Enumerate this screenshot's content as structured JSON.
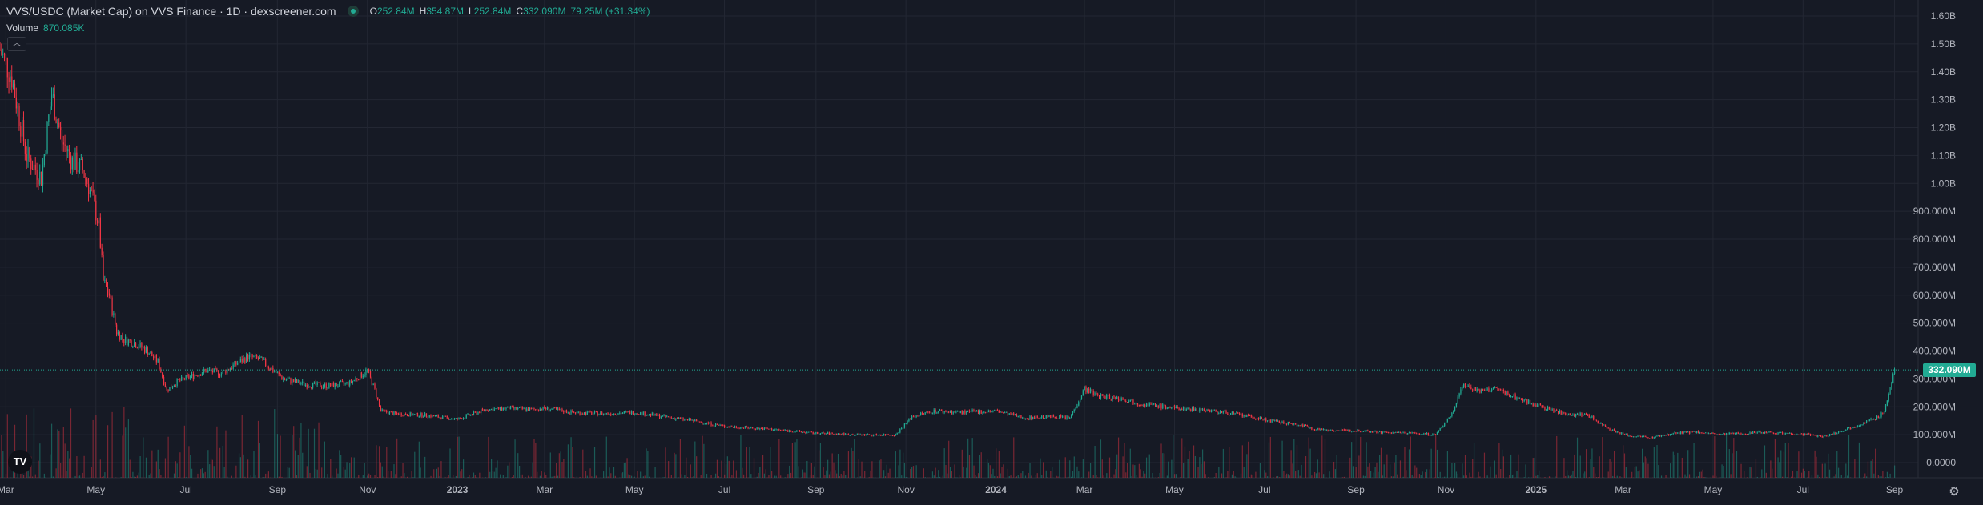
{
  "header": {
    "title": "VVS/USDC (Market Cap) on VVS Finance · 1D · dexscreener.com",
    "ohlc": [
      {
        "k": "O",
        "v": "252.84M"
      },
      {
        "k": "H",
        "v": "354.87M"
      },
      {
        "k": "L",
        "v": "252.84M"
      },
      {
        "k": "C",
        "v": "332.090M"
      }
    ],
    "change": "79.25M (+31.34%)"
  },
  "volume_legend": {
    "label": "Volume",
    "value": "870.085K"
  },
  "collapse_icon": "chevron-up-icon",
  "logo_text": "TV",
  "settings_icon": "gear-icon",
  "colors": {
    "background": "#161a25",
    "grid": "#232733",
    "up": "#22ab94",
    "down": "#f23645",
    "text": "#d1d4dc"
  },
  "chart_data": {
    "type": "candlestick",
    "title": "VVS/USDC (Market Cap) on VVS Finance · 1D · dexscreener.com",
    "ylim": [
      0,
      1600000000
    ],
    "y_ticks": [
      {
        "value": 0,
        "label": "0.0000"
      },
      {
        "value": 100000000,
        "label": "100.000M"
      },
      {
        "value": 200000000,
        "label": "200.000M"
      },
      {
        "value": 300000000,
        "label": "300.000M"
      },
      {
        "value": 400000000,
        "label": "400.000M"
      },
      {
        "value": 500000000,
        "label": "500.000M"
      },
      {
        "value": 600000000,
        "label": "600.000M"
      },
      {
        "value": 700000000,
        "label": "700.000M"
      },
      {
        "value": 800000000,
        "label": "800.000M"
      },
      {
        "value": 900000000,
        "label": "900.000M"
      },
      {
        "value": 1000000000,
        "label": "1.00B"
      },
      {
        "value": 1100000000,
        "label": "1.10B"
      },
      {
        "value": 1200000000,
        "label": "1.20B"
      },
      {
        "value": 1300000000,
        "label": "1.30B"
      },
      {
        "value": 1400000000,
        "label": "1.40B"
      },
      {
        "value": 1500000000,
        "label": "1.50B"
      },
      {
        "value": 1600000000,
        "label": "1.60B"
      }
    ],
    "x_ticks": [
      {
        "date": "2022-03-01",
        "label": "Mar",
        "bold": false
      },
      {
        "date": "2022-05-01",
        "label": "May",
        "bold": false
      },
      {
        "date": "2022-07-01",
        "label": "Jul",
        "bold": false
      },
      {
        "date": "2022-09-01",
        "label": "Sep",
        "bold": false
      },
      {
        "date": "2022-11-01",
        "label": "Nov",
        "bold": false
      },
      {
        "date": "2023-01-01",
        "label": "2023",
        "bold": true
      },
      {
        "date": "2023-03-01",
        "label": "Mar",
        "bold": false
      },
      {
        "date": "2023-05-01",
        "label": "May",
        "bold": false
      },
      {
        "date": "2023-07-01",
        "label": "Jul",
        "bold": false
      },
      {
        "date": "2023-09-01",
        "label": "Sep",
        "bold": false
      },
      {
        "date": "2023-11-01",
        "label": "Nov",
        "bold": false
      },
      {
        "date": "2024-01-01",
        "label": "2024",
        "bold": true
      },
      {
        "date": "2024-03-01",
        "label": "Mar",
        "bold": false
      },
      {
        "date": "2024-05-01",
        "label": "May",
        "bold": false
      },
      {
        "date": "2024-07-01",
        "label": "Jul",
        "bold": false
      },
      {
        "date": "2024-09-01",
        "label": "Sep",
        "bold": false
      },
      {
        "date": "2024-11-01",
        "label": "Nov",
        "bold": false
      },
      {
        "date": "2025-01-01",
        "label": "2025",
        "bold": true
      },
      {
        "date": "2025-03-01",
        "label": "Mar",
        "bold": false
      },
      {
        "date": "2025-05-01",
        "label": "May",
        "bold": false
      },
      {
        "date": "2025-07-01",
        "label": "Jul",
        "bold": false
      },
      {
        "date": "2025-09-01",
        "label": "Sep",
        "bold": false
      }
    ],
    "x_range": [
      "2022-02-25",
      "2025-09-17"
    ],
    "last_price": {
      "value": 332090000,
      "label": "332.090M"
    },
    "series": [
      {
        "x": [
          "2022-02-25",
          "2022-03-05",
          "2022-03-15",
          "2022-03-25",
          "2022-04-01",
          "2022-04-08",
          "2022-04-15",
          "2022-04-22",
          "2022-04-28",
          "2022-05-03",
          "2022-05-06",
          "2022-05-10",
          "2022-05-15",
          "2022-05-20",
          "2022-05-27",
          "2022-06-05",
          "2022-06-12",
          "2022-06-18",
          "2022-06-25",
          "2022-07-05",
          "2022-07-15",
          "2022-07-25",
          "2022-08-03",
          "2022-08-12",
          "2022-08-20",
          "2022-08-27",
          "2022-09-05",
          "2022-09-20",
          "2022-10-05",
          "2022-10-20",
          "2022-11-01",
          "2022-11-06",
          "2022-11-10",
          "2022-11-20",
          "2022-12-10",
          "2023-01-01",
          "2023-01-20",
          "2023-02-05",
          "2023-02-20",
          "2023-03-01",
          "2023-03-20",
          "2023-04-10",
          "2023-05-01",
          "2023-05-20",
          "2023-06-10",
          "2023-07-01",
          "2023-08-01",
          "2023-09-01",
          "2023-10-01",
          "2023-10-25",
          "2023-11-05",
          "2023-11-20",
          "2023-12-10",
          "2024-01-01",
          "2024-01-20",
          "2024-02-10",
          "2024-02-20",
          "2024-03-01",
          "2024-03-10",
          "2024-03-25",
          "2024-04-10",
          "2024-05-01",
          "2024-05-20",
          "2024-06-10",
          "2024-06-25",
          "2024-07-10",
          "2024-07-25",
          "2024-08-05",
          "2024-08-20",
          "2024-09-05",
          "2024-09-20",
          "2024-10-10",
          "2024-10-25",
          "2024-11-05",
          "2024-11-12",
          "2024-11-25",
          "2024-12-05",
          "2024-12-20",
          "2025-01-05",
          "2025-01-20",
          "2025-02-05",
          "2025-02-20",
          "2025-03-05",
          "2025-03-20",
          "2025-04-05",
          "2025-04-20",
          "2025-05-05",
          "2025-05-20",
          "2025-06-05",
          "2025-06-20",
          "2025-07-05",
          "2025-07-15",
          "2025-07-25",
          "2025-08-05",
          "2025-08-15",
          "2025-08-20",
          "2025-08-25",
          "2025-08-29",
          "2025-09-01"
        ],
        "close": [
          1480000000,
          1380000000,
          1100000000,
          1020000000,
          1320000000,
          1150000000,
          1080000000,
          1050000000,
          960000000,
          850000000,
          650000000,
          600000000,
          470000000,
          440000000,
          430000000,
          400000000,
          360000000,
          260000000,
          290000000,
          310000000,
          330000000,
          320000000,
          350000000,
          380000000,
          370000000,
          340000000,
          300000000,
          280000000,
          275000000,
          285000000,
          330000000,
          260000000,
          185000000,
          175000000,
          170000000,
          155000000,
          190000000,
          195000000,
          190000000,
          195000000,
          180000000,
          175000000,
          180000000,
          165000000,
          150000000,
          130000000,
          120000000,
          105000000,
          100000000,
          100000000,
          165000000,
          185000000,
          180000000,
          185000000,
          160000000,
          165000000,
          160000000,
          265000000,
          240000000,
          230000000,
          210000000,
          195000000,
          190000000,
          175000000,
          160000000,
          145000000,
          135000000,
          120000000,
          115000000,
          115000000,
          108000000,
          105000000,
          100000000,
          175000000,
          280000000,
          255000000,
          265000000,
          230000000,
          200000000,
          175000000,
          170000000,
          120000000,
          95000000,
          90000000,
          105000000,
          110000000,
          100000000,
          105000000,
          110000000,
          105000000,
          100000000,
          92000000,
          110000000,
          130000000,
          150000000,
          160000000,
          185000000,
          260000000,
          332090000
        ]
      }
    ]
  }
}
